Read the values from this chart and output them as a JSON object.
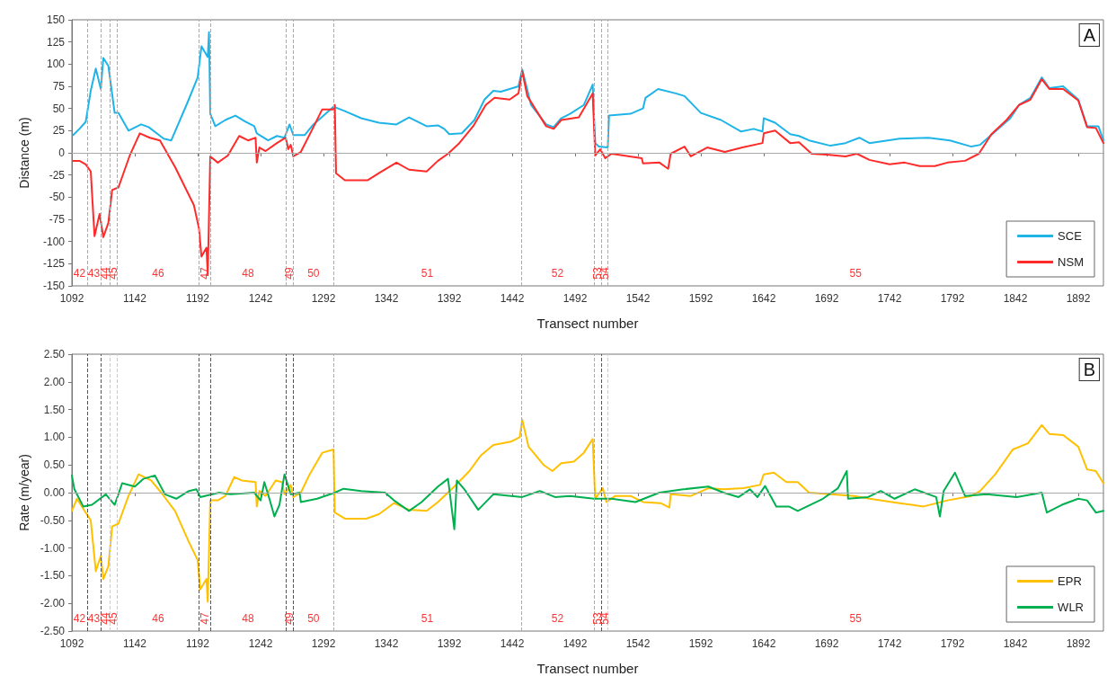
{
  "chart_data": [
    {
      "type": "line",
      "xlabel": "Transect number",
      "ylabel": "Distance (m)",
      "xlim": [
        1092,
        1912
      ],
      "xticks": [
        1092,
        1142,
        1192,
        1242,
        1292,
        1342,
        1392,
        1442,
        1492,
        1542,
        1592,
        1642,
        1692,
        1742,
        1792,
        1842,
        1892
      ],
      "ylim": [
        -150,
        150
      ],
      "yticks": [
        -150,
        -125,
        -100,
        -75,
        -50,
        -25,
        0,
        25,
        50,
        75,
        100,
        125,
        150
      ],
      "grid": false,
      "legend": "bottom right",
      "marker": "none",
      "series": [
        {
          "name": "SCE",
          "color": "#1fb4e8",
          "x": [
            1093,
            1098,
            1103,
            1107,
            1111,
            1115,
            1117,
            1121,
            1126,
            1129,
            1137,
            1147,
            1153,
            1165,
            1171,
            1184,
            1192,
            1195,
            1200,
            1201,
            1202,
            1206,
            1214,
            1222,
            1230,
            1237,
            1239,
            1248,
            1255,
            1261,
            1265,
            1268,
            1277,
            1284,
            1300,
            1309,
            1322,
            1336,
            1350,
            1360,
            1374,
            1383,
            1388,
            1392,
            1402,
            1412,
            1420,
            1427,
            1433,
            1447,
            1450,
            1457,
            1469,
            1475,
            1481,
            1488,
            1499,
            1506,
            1508,
            1511,
            1518,
            1519,
            1536,
            1546,
            1548,
            1558,
            1572,
            1579,
            1592,
            1608,
            1624,
            1634,
            1641,
            1642,
            1651,
            1663,
            1670,
            1678,
            1695,
            1707,
            1718,
            1726,
            1750,
            1773,
            1790,
            1807,
            1814,
            1826,
            1838,
            1845,
            1854,
            1863,
            1869,
            1880,
            1892,
            1899,
            1908,
            1912
          ],
          "values": [
            20,
            27,
            35,
            70,
            95,
            72,
            107,
            98,
            45,
            45,
            25,
            32,
            29,
            16,
            14,
            57,
            85,
            120,
            108,
            136,
            44,
            30,
            37,
            42,
            35,
            30,
            22,
            14,
            19,
            17,
            32,
            20,
            20,
            32,
            52,
            47,
            39,
            34,
            32,
            40,
            30,
            31,
            27,
            21,
            22,
            37,
            60,
            70,
            69,
            75,
            94,
            54,
            32,
            29,
            39,
            44,
            54,
            77,
            11,
            7,
            6,
            42,
            44,
            50,
            62,
            72,
            67,
            64,
            45,
            37,
            24,
            27,
            24,
            39,
            34,
            21,
            19,
            14,
            8,
            11,
            17,
            11,
            16,
            17,
            14,
            7,
            9,
            24,
            39,
            54,
            62,
            85,
            73,
            75,
            60,
            30,
            30,
            14
          ]
        },
        {
          "name": "NSM",
          "color": "#ff2a2a",
          "x": [
            1093,
            1098,
            1103,
            1107,
            1110,
            1114,
            1117,
            1121,
            1124,
            1129,
            1138,
            1146,
            1154,
            1162,
            1174,
            1189,
            1193,
            1195,
            1199,
            1200,
            1202,
            1208,
            1216,
            1225,
            1232,
            1238,
            1239,
            1241,
            1246,
            1255,
            1262,
            1264,
            1266,
            1268,
            1274,
            1284,
            1291,
            1300,
            1301,
            1302,
            1309,
            1327,
            1336,
            1350,
            1360,
            1374,
            1383,
            1391,
            1400,
            1411,
            1421,
            1428,
            1440,
            1447,
            1450,
            1454,
            1469,
            1475,
            1481,
            1495,
            1506,
            1508,
            1512,
            1516,
            1521,
            1545,
            1546,
            1559,
            1566,
            1568,
            1579,
            1584,
            1597,
            1611,
            1625,
            1641,
            1642,
            1651,
            1663,
            1670,
            1680,
            1692,
            1707,
            1716,
            1726,
            1742,
            1754,
            1766,
            1778,
            1788,
            1802,
            1813,
            1823,
            1835,
            1845,
            1854,
            1863,
            1869,
            1880,
            1892,
            1899,
            1906,
            1912
          ],
          "values": [
            -9,
            -9,
            -13,
            -21,
            -94,
            -69,
            -95,
            -79,
            -42,
            -39,
            -3,
            22,
            17,
            14,
            -16,
            -59,
            -85,
            -117,
            -107,
            -138,
            -4,
            -11,
            -3,
            19,
            14,
            17,
            -11,
            6,
            2,
            11,
            17,
            4,
            9,
            -4,
            1,
            29,
            49,
            49,
            54,
            -23,
            -31,
            -31,
            -23,
            -11,
            -19,
            -21,
            -9,
            -1,
            11,
            30,
            54,
            62,
            60,
            67,
            92,
            64,
            30,
            27,
            37,
            40,
            67,
            -3,
            4,
            -6,
            -1,
            -6,
            -12,
            -11,
            -18,
            -1,
            7,
            -4,
            6,
            1,
            6,
            11,
            22,
            25,
            11,
            12,
            -1,
            -2,
            -4,
            -1,
            -8,
            -13,
            -11,
            -15,
            -15,
            -11,
            -9,
            -1,
            21,
            37,
            54,
            60,
            83,
            72,
            72,
            59,
            29,
            28,
            11
          ]
        }
      ],
      "ref_lines": [
        {
          "axis": "y",
          "value": 0,
          "color": "#aaaaaa",
          "line_style": "solid"
        },
        {
          "axis": "x",
          "value": 1104,
          "color": "#aaaaaa",
          "line_style": "dashed"
        },
        {
          "axis": "x",
          "value": 1115,
          "color": "#aaaaaa",
          "line_style": "dashed"
        },
        {
          "axis": "x",
          "value": 1122,
          "color": "#aaaaaa",
          "line_style": "dashed"
        },
        {
          "axis": "x",
          "value": 1128,
          "color": "#aaaaaa",
          "line_style": "dashed"
        },
        {
          "axis": "x",
          "value": 1193,
          "color": "#aaaaaa",
          "line_style": "dashed"
        },
        {
          "axis": "x",
          "value": 1202,
          "color": "#aaaaaa",
          "line_style": "dashed"
        },
        {
          "axis": "x",
          "value": 1262,
          "color": "#aaaaaa",
          "line_style": "dashed"
        },
        {
          "axis": "x",
          "value": 1268,
          "color": "#aaaaaa",
          "line_style": "dashed"
        },
        {
          "axis": "x",
          "value": 1300,
          "color": "#aaaaaa",
          "line_style": "dashed"
        },
        {
          "axis": "x",
          "value": 1449,
          "color": "#aaaaaa",
          "line_style": "dashed"
        },
        {
          "axis": "x",
          "value": 1507,
          "color": "#aaaaaa",
          "line_style": "dashed"
        },
        {
          "axis": "x",
          "value": 1513,
          "color": "#aaaaaa",
          "line_style": "dashed"
        },
        {
          "axis": "x",
          "value": 1518,
          "color": "#aaaaaa",
          "line_style": "dashed"
        }
      ],
      "annotations": [
        "A",
        "42",
        "43",
        "44",
        "45",
        "46",
        "47",
        "48",
        "49",
        "50",
        "51",
        "52",
        "53",
        "54",
        "55"
      ]
    },
    {
      "type": "line",
      "xlabel": "Transect number",
      "ylabel": "Rate (m/year)",
      "xlim": [
        1092,
        1912
      ],
      "xticks": [
        1092,
        1142,
        1192,
        1242,
        1292,
        1342,
        1392,
        1442,
        1492,
        1542,
        1592,
        1642,
        1692,
        1742,
        1792,
        1842,
        1892
      ],
      "ylim": [
        -2.5,
        2.5
      ],
      "yticks": [
        {
          "value": -2.5,
          "label": "-2.50"
        },
        {
          "value": -2,
          "label": "-2.00"
        },
        {
          "value": -1.5,
          "label": "-1.50"
        },
        {
          "value": -1,
          "label": "-1.00"
        },
        {
          "value": -0.5,
          "label": "-0.50"
        },
        {
          "value": 0,
          "label": "0.00"
        },
        {
          "value": 0.5,
          "label": "0.50"
        },
        {
          "value": 1,
          "label": "1.00"
        },
        {
          "value": 1.5,
          "label": "1.50"
        },
        {
          "value": 2,
          "label": "2.00"
        },
        {
          "value": 2.5,
          "label": "2.50"
        }
      ],
      "grid": false,
      "legend": "bottom right",
      "marker": "none",
      "series": [
        {
          "name": "EPR",
          "color": "#ffc000",
          "x": [
            1092,
            1096,
            1103,
            1107,
            1111,
            1115,
            1117,
            1121,
            1124,
            1129,
            1137,
            1145,
            1155,
            1163,
            1174,
            1185,
            1192,
            1194,
            1199,
            1200,
            1202,
            1208,
            1214,
            1221,
            1227,
            1238,
            1239,
            1241,
            1246,
            1254,
            1259,
            1261,
            1266,
            1268,
            1274,
            1281,
            1291,
            1300,
            1301,
            1309,
            1326,
            1336,
            1348,
            1360,
            1374,
            1383,
            1396,
            1408,
            1417,
            1427,
            1441,
            1448,
            1450,
            1455,
            1467,
            1474,
            1481,
            1491,
            1499,
            1506,
            1508,
            1514,
            1517,
            1524,
            1536,
            1546,
            1560,
            1567,
            1568,
            1584,
            1598,
            1610,
            1626,
            1639,
            1642,
            1650,
            1660,
            1669,
            1678,
            1695,
            1714,
            1726,
            1750,
            1769,
            1788,
            1807,
            1814,
            1826,
            1840,
            1852,
            1863,
            1869,
            1880,
            1892,
            1899,
            1906,
            1912
          ],
          "values": [
            -0.33,
            -0.11,
            -0.36,
            -0.5,
            -1.42,
            -1.14,
            -1.56,
            -1.33,
            -0.61,
            -0.56,
            -0.06,
            0.33,
            0.22,
            0,
            -0.33,
            -0.89,
            -1.22,
            -1.75,
            -1.56,
            -1.97,
            -0.14,
            -0.14,
            -0.06,
            0.28,
            0.22,
            0.19,
            -0.25,
            0.03,
            -0.06,
            0.22,
            0.19,
            -0.03,
            0.14,
            -0.08,
            0,
            0.33,
            0.72,
            0.78,
            -0.36,
            -0.47,
            -0.47,
            -0.39,
            -0.19,
            -0.31,
            -0.33,
            -0.17,
            0.11,
            0.39,
            0.67,
            0.86,
            0.92,
            1,
            1.32,
            0.83,
            0.5,
            0.39,
            0.53,
            0.56,
            0.72,
            0.97,
            -0.11,
            0.08,
            -0.17,
            -0.06,
            -0.06,
            -0.17,
            -0.19,
            -0.27,
            -0.03,
            -0.06,
            0.08,
            0.06,
            0.08,
            0.14,
            0.33,
            0.36,
            0.19,
            0.19,
            0,
            -0.03,
            -0.06,
            -0.11,
            -0.19,
            -0.25,
            -0.14,
            -0.06,
            0.03,
            0.33,
            0.78,
            0.89,
            1.22,
            1.06,
            1.04,
            0.83,
            0.42,
            0.39,
            0.17
          ]
        },
        {
          "name": "WLR",
          "color": "#00b050",
          "x": [
            1092,
            1094,
            1101,
            1108,
            1119,
            1126,
            1132,
            1142,
            1149,
            1158,
            1166,
            1175,
            1185,
            1191,
            1194,
            1209,
            1218,
            1237,
            1242,
            1245,
            1249,
            1253,
            1257,
            1261,
            1266,
            1273,
            1274,
            1287,
            1301,
            1308,
            1322,
            1341,
            1348,
            1360,
            1370,
            1383,
            1391,
            1396,
            1398,
            1404,
            1415,
            1427,
            1450,
            1464,
            1476,
            1488,
            1507,
            1521,
            1540,
            1559,
            1578,
            1598,
            1610,
            1622,
            1631,
            1637,
            1643,
            1652,
            1662,
            1669,
            1689,
            1701,
            1708,
            1709,
            1725,
            1735,
            1746,
            1762,
            1779,
            1782,
            1785,
            1794,
            1802,
            1819,
            1843,
            1863,
            1867,
            1879,
            1892,
            1899,
            1906,
            1912
          ],
          "values": [
            0.31,
            0.06,
            -0.25,
            -0.22,
            -0.03,
            -0.22,
            0.17,
            0.11,
            0.25,
            0.31,
            -0.03,
            -0.11,
            0.03,
            0.06,
            -0.08,
            0,
            -0.03,
            0,
            -0.14,
            0.19,
            -0.11,
            -0.43,
            -0.22,
            0.33,
            -0.03,
            0,
            -0.17,
            -0.11,
            0,
            0.07,
            0.03,
            0,
            -0.14,
            -0.33,
            -0.17,
            0.11,
            0.25,
            -0.66,
            0.22,
            0.06,
            -0.31,
            -0.03,
            -0.08,
            0.03,
            -0.08,
            -0.06,
            -0.11,
            -0.11,
            -0.17,
            0,
            0.06,
            0.11,
            0,
            -0.08,
            0.06,
            -0.08,
            0.12,
            -0.25,
            -0.25,
            -0.33,
            -0.11,
            0.08,
            0.39,
            -0.11,
            -0.08,
            0.03,
            -0.11,
            0.06,
            -0.08,
            -0.43,
            0.03,
            0.36,
            -0.06,
            -0.03,
            -0.08,
            0,
            -0.36,
            -0.22,
            -0.11,
            -0.14,
            -0.36,
            -0.33
          ]
        }
      ],
      "ref_lines": [
        {
          "axis": "y",
          "value": 0,
          "color": "#aaaaaa",
          "line_style": "solid"
        },
        {
          "axis": "x",
          "value": 1104,
          "color": "#555555",
          "line_style": "dashed"
        },
        {
          "axis": "x",
          "value": 1115,
          "color": "#555555",
          "line_style": "dashed"
        },
        {
          "axis": "x",
          "value": 1122,
          "color": "#cccccc",
          "line_style": "dashed"
        },
        {
          "axis": "x",
          "value": 1128,
          "color": "#cccccc",
          "line_style": "dashed"
        },
        {
          "axis": "x",
          "value": 1193,
          "color": "#555555",
          "line_style": "dashed"
        },
        {
          "axis": "x",
          "value": 1202,
          "color": "#555555",
          "line_style": "dashed"
        },
        {
          "axis": "x",
          "value": 1262,
          "color": "#555555",
          "line_style": "dashed"
        },
        {
          "axis": "x",
          "value": 1268,
          "color": "#555555",
          "line_style": "dashed"
        },
        {
          "axis": "x",
          "value": 1300,
          "color": "#aaaaaa",
          "line_style": "dashed"
        },
        {
          "axis": "x",
          "value": 1449,
          "color": "#aaaaaa",
          "line_style": "dashed"
        },
        {
          "axis": "x",
          "value": 1507,
          "color": "#aaaaaa",
          "line_style": "dashed"
        },
        {
          "axis": "x",
          "value": 1513,
          "color": "#555555",
          "line_style": "dashed"
        },
        {
          "axis": "x",
          "value": 1518,
          "color": "#cccccc",
          "line_style": "dashed"
        }
      ],
      "annotations": [
        "B",
        "42",
        "43",
        "44",
        "45",
        "46",
        "47",
        "48",
        "49",
        "50",
        "51",
        "52",
        "53",
        "54",
        "55"
      ]
    }
  ]
}
